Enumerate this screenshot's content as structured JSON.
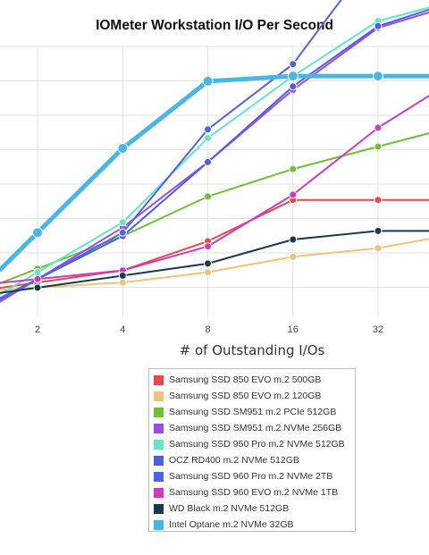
{
  "chart_data": {
    "type": "line",
    "title": "IOMeter Workstation I/O Per Second",
    "xlabel": "# of Outstanding I/Os",
    "ylabel": "",
    "x_scale": "log2",
    "x": [
      1,
      2,
      4,
      8,
      16,
      32,
      64
    ],
    "xticks": [
      "2",
      "4",
      "8",
      "16",
      "32"
    ],
    "grid": true,
    "legend_position": "bottom",
    "series": [
      {
        "name": "Samsung SSD 850 EVO m.2 500GB",
        "color": "#e84848",
        "values": [
          null,
          0.75,
          1.1,
          1.95,
          3.15,
          3.15,
          3.15
        ]
      },
      {
        "name": "Samsung SSD 850 EVO m.2 120GB",
        "color": "#efc27a",
        "values": [
          null,
          0.6,
          0.75,
          1.05,
          1.5,
          1.75,
          2.2
        ]
      },
      {
        "name": "Samsung SSD SM951 m.2 PCIe 512GB",
        "color": "#6fbf3a",
        "values": [
          null,
          1.15,
          2.1,
          3.25,
          4.05,
          4.7,
          5.35
        ]
      },
      {
        "name": "Samsung SSD SM951 m.2 NVMe 256GB",
        "color": "#9a4de6",
        "values": [
          null,
          0.85,
          2.35,
          4.25,
          6.35,
          8.15,
          8.9
        ]
      },
      {
        "name": "Samsung SSD 950 Pro m.2 NVMe 512GB",
        "color": "#62e6c9",
        "values": [
          null,
          1.05,
          2.5,
          4.95,
          6.75,
          8.35,
          9.0
        ]
      },
      {
        "name": "OCZ RD400 m.2 NVMe 512GB",
        "color": "#4a5fe0",
        "values": [
          null,
          0.85,
          2.1,
          4.25,
          6.45,
          8.2,
          9.0
        ]
      },
      {
        "name": "Samsung SSD 960 Pro m.2 NVMe 2TB",
        "color": "#4e63e6",
        "values": [
          null,
          0.85,
          2.2,
          5.2,
          7.1,
          10.4,
          12.4
        ]
      },
      {
        "name": "Samsung SSD 960 EVO m.2 NVMe 1TB",
        "color": "#cc3bbb",
        "values": [
          null,
          0.85,
          1.1,
          1.8,
          3.3,
          5.25,
          6.8
        ]
      },
      {
        "name": "WD Black m.2 NVMe 512GB",
        "color": "#173a4f",
        "values": [
          null,
          0.6,
          0.95,
          1.3,
          2.0,
          2.25,
          2.25
        ]
      },
      {
        "name": "Intel Optane m.2 NVMe 32GB",
        "color": "#4ab6e8",
        "values": [
          null,
          2.2,
          4.65,
          6.6,
          6.75,
          6.75,
          6.75
        ]
      }
    ]
  }
}
